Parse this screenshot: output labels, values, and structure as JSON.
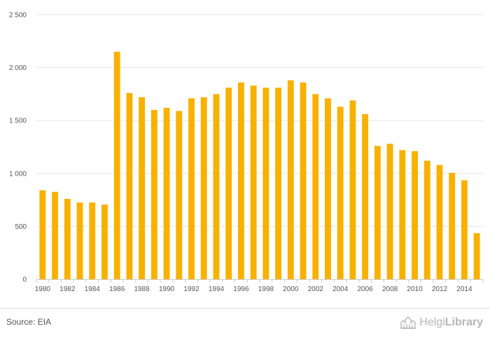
{
  "chart_data": {
    "type": "bar",
    "categories": [
      "1980",
      "1981",
      "1982",
      "1983",
      "1984",
      "1985",
      "1986",
      "1987",
      "1988",
      "1989",
      "1990",
      "1991",
      "1992",
      "1993",
      "1994",
      "1995",
      "1996",
      "1997",
      "1998",
      "1999",
      "2000",
      "2001",
      "2002",
      "2003",
      "2004",
      "2005",
      "2006",
      "2007",
      "2008",
      "2009",
      "2010",
      "2011",
      "2012",
      "2013",
      "2014",
      "2015"
    ],
    "x_tick_labels": [
      "1980",
      "1982",
      "1984",
      "1986",
      "1988",
      "1990",
      "1992",
      "1994",
      "1996",
      "1998",
      "2000",
      "2002",
      "2004",
      "2006",
      "2008",
      "2010",
      "2012",
      "2014"
    ],
    "values": [
      840,
      825,
      760,
      725,
      725,
      705,
      2150,
      1760,
      1720,
      1600,
      1620,
      1590,
      1710,
      1720,
      1750,
      1810,
      1860,
      1830,
      1810,
      1810,
      1880,
      1860,
      1750,
      1710,
      1630,
      1690,
      1560,
      1260,
      1280,
      1220,
      1210,
      1120,
      1080,
      1005,
      935,
      435
    ],
    "ylim": [
      0,
      2500
    ],
    "y_ticks": [
      0,
      500,
      1000,
      1500,
      2000,
      2500
    ],
    "y_tick_labels": [
      "0",
      "500",
      "1 000",
      "1 500",
      "2 000",
      "2 500"
    ],
    "grid": true,
    "bar_color": "#f8b100",
    "grid_color": "#e6e6e6",
    "axis_color": "#cccccc",
    "title": "",
    "xlabel": "",
    "ylabel": ""
  },
  "footer": {
    "source": "Source: EIA",
    "brand_light": "Helgi",
    "brand_bold": "Library",
    "brand_icon": "helgi-library-logo-icon"
  }
}
